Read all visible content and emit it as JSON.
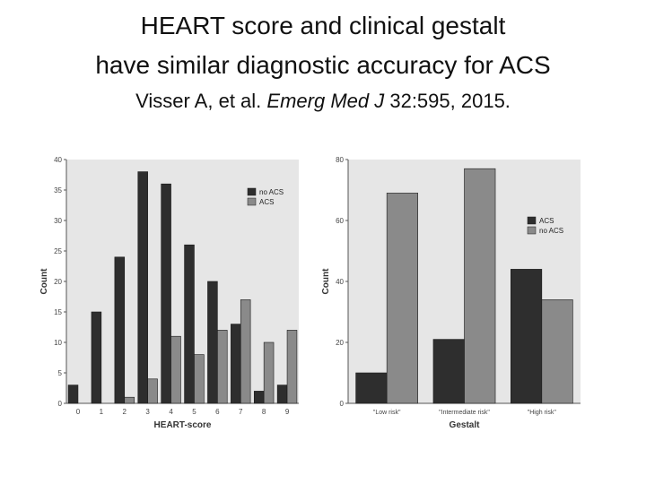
{
  "header": {
    "title_line1": "HEART score and clinical gestalt",
    "title_line2": "have similar diagnostic accuracy for ACS",
    "citation_authors": "Visser A, et al. ",
    "citation_journal": "Emerg Med J",
    "citation_details": "  32:595, 2015."
  },
  "colors": {
    "dark_bar": "#2e2e2e",
    "light_bar": "#8a8a8a",
    "plot_background": "#e6e6e6",
    "axis": "#555555"
  },
  "chart_data": [
    {
      "type": "bar",
      "xlabel": "HEART-score",
      "ylabel": "Count",
      "ylim": [
        0,
        40
      ],
      "yticks": [
        0,
        5,
        10,
        15,
        20,
        25,
        30,
        35,
        40
      ],
      "categories": [
        "0",
        "1",
        "2",
        "3",
        "4",
        "5",
        "6",
        "7",
        "8",
        "9"
      ],
      "series": [
        {
          "name": "no ACS",
          "values": [
            3,
            15,
            24,
            38,
            36,
            26,
            20,
            13,
            2,
            3
          ]
        },
        {
          "name": "ACS",
          "values": [
            0,
            0,
            1,
            4,
            11,
            8,
            12,
            17,
            10,
            12
          ]
        }
      ],
      "legend": "top-right",
      "grid": false
    },
    {
      "type": "bar",
      "xlabel": "Gestalt",
      "ylabel": "Count",
      "ylim": [
        0,
        80
      ],
      "yticks": [
        0,
        20,
        40,
        60,
        80
      ],
      "categories": [
        "\"Low risk\"",
        "\"Intermediate risk\"",
        "\"High risk\""
      ],
      "series": [
        {
          "name": "ACS",
          "values": [
            10,
            21,
            44
          ]
        },
        {
          "name": "no ACS",
          "values": [
            69,
            77,
            34
          ]
        }
      ],
      "legend": "top-right",
      "grid": false
    }
  ]
}
